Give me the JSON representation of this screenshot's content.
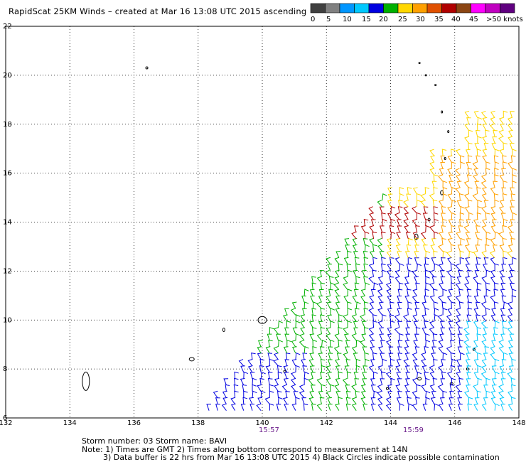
{
  "title": "RapidScat 25KM Winds – created at Mar 16 13:08 UTC 2015 ascending",
  "colorbar": {
    "colors": [
      "#404040",
      "#808080",
      "#0096ff",
      "#00c8ff",
      "#0000e0",
      "#00b000",
      "#ffd700",
      "#ffa000",
      "#e05000",
      "#b00000",
      "#8b4513",
      "#ff00ff",
      "#c000c0",
      "#600080"
    ],
    "labels": [
      "0",
      "5",
      "10",
      "15",
      "20",
      "25",
      "30",
      "35",
      "40",
      "45",
      ">50 knots"
    ]
  },
  "map": {
    "lon_range": [
      132,
      148
    ],
    "lat_range": [
      6,
      22
    ],
    "x_ticks": [
      "132",
      "134",
      "136",
      "138",
      "140",
      "142",
      "144",
      "146",
      "148"
    ],
    "y_ticks": [
      "6",
      "8",
      "10",
      "12",
      "14",
      "16",
      "18",
      "20",
      "22"
    ]
  },
  "time_labels": [
    {
      "text": "15:57",
      "lon": 140
    },
    {
      "text": "15:59",
      "lon": 145
    }
  ],
  "footer": {
    "storm": "Storm number: 03     Storm name: BAVI",
    "note1": "Note: 1) Times are GMT  2) Times along bottom correspond to measurement at 14N",
    "note2": "3) Data buffer is 22 hrs from Mar 16 13:08 UTC 2015   4) Black Circles indicate possible contamination"
  }
}
